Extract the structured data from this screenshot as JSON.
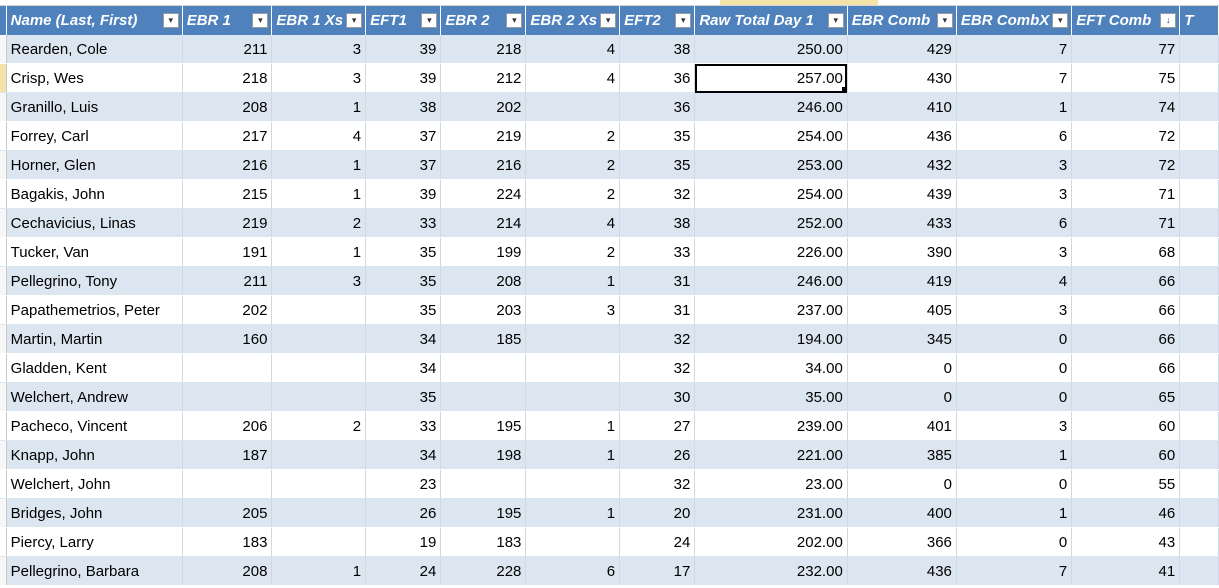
{
  "headers": [
    {
      "label": "Name (Last, First)",
      "filter": "▾"
    },
    {
      "label": "EBR 1",
      "filter": "▾"
    },
    {
      "label": "EBR 1 Xs",
      "filter": "▾"
    },
    {
      "label": "EFT1",
      "filter": "▾"
    },
    {
      "label": "EBR 2",
      "filter": "▾"
    },
    {
      "label": "EBR 2 Xs",
      "filter": "▾"
    },
    {
      "label": "EFT2",
      "filter": "▾"
    },
    {
      "label": "Raw Total Day 1",
      "filter": "▾"
    },
    {
      "label": "EBR Comb",
      "filter": "▾"
    },
    {
      "label": "EBR CombX",
      "filter": "▾"
    },
    {
      "label": "EFT Comb",
      "filter": "↓"
    },
    {
      "label": "T",
      "filter": ""
    }
  ],
  "rows": [
    [
      "Rearden, Cole",
      "211",
      "3",
      "39",
      "218",
      "4",
      "38",
      "250.00",
      "429",
      "7",
      "77",
      ""
    ],
    [
      "Crisp, Wes",
      "218",
      "3",
      "39",
      "212",
      "4",
      "36",
      "257.00",
      "430",
      "7",
      "75",
      ""
    ],
    [
      "Granillo, Luis",
      "208",
      "1",
      "38",
      "202",
      "",
      "36",
      "246.00",
      "410",
      "1",
      "74",
      ""
    ],
    [
      "Forrey, Carl",
      "217",
      "4",
      "37",
      "219",
      "2",
      "35",
      "254.00",
      "436",
      "6",
      "72",
      ""
    ],
    [
      "Horner, Glen",
      "216",
      "1",
      "37",
      "216",
      "2",
      "35",
      "253.00",
      "432",
      "3",
      "72",
      ""
    ],
    [
      "Bagakis, John",
      "215",
      "1",
      "39",
      "224",
      "2",
      "32",
      "254.00",
      "439",
      "3",
      "71",
      ""
    ],
    [
      "Cechavicius, Linas",
      "219",
      "2",
      "33",
      "214",
      "4",
      "38",
      "252.00",
      "433",
      "6",
      "71",
      ""
    ],
    [
      "Tucker, Van",
      "191",
      "1",
      "35",
      "199",
      "2",
      "33",
      "226.00",
      "390",
      "3",
      "68",
      ""
    ],
    [
      "Pellegrino, Tony",
      "211",
      "3",
      "35",
      "208",
      "1",
      "31",
      "246.00",
      "419",
      "4",
      "66",
      ""
    ],
    [
      "Papathemetrios, Peter",
      "202",
      "",
      "35",
      "203",
      "3",
      "31",
      "237.00",
      "405",
      "3",
      "66",
      ""
    ],
    [
      "Martin, Martin",
      "160",
      "",
      "34",
      "185",
      "",
      "32",
      "194.00",
      "345",
      "0",
      "66",
      ""
    ],
    [
      "Gladden, Kent",
      "",
      "",
      "34",
      "",
      "",
      "32",
      "34.00",
      "0",
      "0",
      "66",
      ""
    ],
    [
      "Welchert, Andrew",
      "",
      "",
      "35",
      "",
      "",
      "30",
      "35.00",
      "0",
      "0",
      "65",
      ""
    ],
    [
      "Pacheco, Vincent",
      "206",
      "2",
      "33",
      "195",
      "1",
      "27",
      "239.00",
      "401",
      "3",
      "60",
      ""
    ],
    [
      "Knapp, John",
      "187",
      "",
      "34",
      "198",
      "1",
      "26",
      "221.00",
      "385",
      "1",
      "60",
      ""
    ],
    [
      "Welchert, John",
      "",
      "",
      "23",
      "",
      "",
      "32",
      "23.00",
      "0",
      "0",
      "55",
      ""
    ],
    [
      "Bridges, John",
      "205",
      "",
      "26",
      "195",
      "1",
      "20",
      "231.00",
      "400",
      "1",
      "46",
      ""
    ],
    [
      "Piercy, Larry",
      "183",
      "",
      "19",
      "183",
      "",
      "24",
      "202.00",
      "366",
      "0",
      "43",
      ""
    ],
    [
      "Pellegrino, Barbara",
      "208",
      "1",
      "24",
      "228",
      "6",
      "17",
      "232.00",
      "436",
      "7",
      "41",
      ""
    ]
  ],
  "active_cell": {
    "row": 1,
    "col": 7
  },
  "colors": {
    "header_bg": "#4f81bd",
    "band_bg": "#dce6f1",
    "selection": "#f3e3a8"
  }
}
